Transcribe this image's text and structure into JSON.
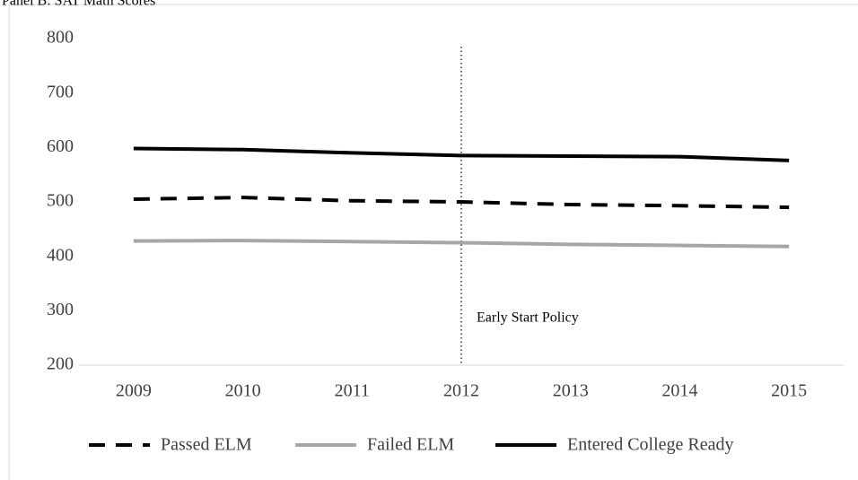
{
  "chart_data": {
    "type": "line",
    "title": "Panel B: SAT Math Scores",
    "categories": [
      "2009",
      "2010",
      "2011",
      "2012",
      "2013",
      "2014",
      "2015"
    ],
    "series": [
      {
        "name": "Passed ELM",
        "color": "#000000",
        "dash": "dashed",
        "values": [
          505,
          508,
          502,
          500,
          495,
          493,
          490
        ]
      },
      {
        "name": "Failed ELM",
        "color": "#a6a6a6",
        "dash": "solid",
        "values": [
          428,
          429,
          427,
          425,
          422,
          420,
          418
        ]
      },
      {
        "name": "Entered College Ready",
        "color": "#000000",
        "dash": "solid",
        "values": [
          598,
          596,
          590,
          585,
          584,
          583,
          576
        ]
      }
    ],
    "ylim": [
      200,
      800
    ],
    "yticks": [
      200,
      300,
      400,
      500,
      600,
      700,
      800
    ],
    "grid": false,
    "legend": "bottom",
    "annotation": {
      "text": "Early Start Policy",
      "x": "2012"
    }
  }
}
